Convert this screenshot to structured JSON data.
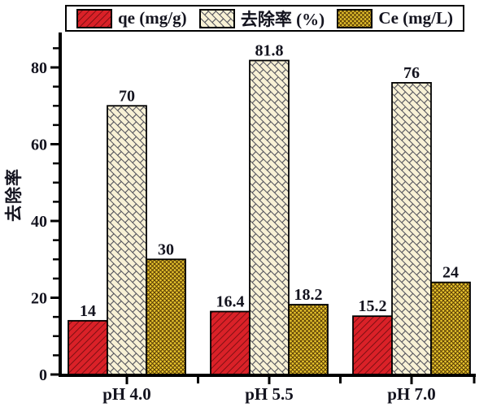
{
  "chart_data": {
    "type": "bar",
    "title": "",
    "categories": [
      "pH 4.0",
      "pH 5.5",
      "pH 7.0"
    ],
    "series": [
      {
        "name": "qe (mg/g)",
        "values": [
          14,
          16.4,
          15.2
        ],
        "labels": [
          "14",
          "16.4",
          "15.2"
        ],
        "color": "#da2128",
        "hatch": "diagonal"
      },
      {
        "name": "去除率 (%)",
        "values": [
          70,
          81.8,
          76
        ],
        "labels": [
          "70",
          "81.8",
          "76"
        ],
        "color": "#f8f1d5",
        "hatch": "diagonal-brick"
      },
      {
        "name": "Ce (mg/L)",
        "values": [
          30,
          18.2,
          24
        ],
        "labels": [
          "30",
          "18.2",
          "24"
        ],
        "color": "#eac72e",
        "hatch": "crosshatch"
      }
    ],
    "xlabel": "",
    "ylabel": "去除率",
    "yticks": [
      0,
      20,
      40,
      60,
      80
    ],
    "minor_tick_step": 5,
    "ylim": [
      0,
      90
    ],
    "grid": false,
    "legend_position": "top",
    "bar_value_labels_shown": true,
    "axis_color": "#000000",
    "text_color": "#14141f"
  }
}
